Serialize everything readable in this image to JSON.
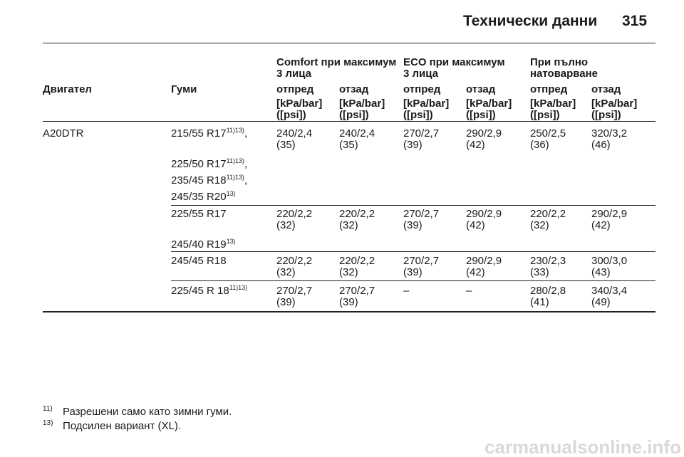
{
  "header": {
    "title": "Технически данни",
    "page": "315"
  },
  "table": {
    "engine_header": "Двигател",
    "tire_header": "Гуми",
    "groups": [
      [
        "Comfort при максимум",
        "3 лица"
      ],
      [
        "ECO при максимум",
        "3 лица"
      ],
      [
        "При пълно",
        "натоварване"
      ]
    ],
    "columns": [
      "отпред",
      "отзад",
      "отпред",
      "отзад",
      "отпред",
      "отзад"
    ],
    "units": [
      [
        "[kPa/bar]",
        "([psi])"
      ],
      [
        "[kPa/bar]",
        "([psi])"
      ],
      [
        "[kPa/bar]",
        "([psi])"
      ],
      [
        "[kPa/bar]",
        "([psi])"
      ],
      [
        "[kPa/bar]",
        "([psi])"
      ],
      [
        "[kPa/bar]",
        "([psi])"
      ]
    ],
    "engine": "A20DTR",
    "rows": [
      {
        "tires": [
          {
            "name": "215/55 R17",
            "note": "11)13)",
            "suffix": ","
          },
          {
            "name": "225/50 R17",
            "note": "11)13)",
            "suffix": ","
          },
          {
            "name": "235/45 R18",
            "note": "11)13)",
            "suffix": ","
          },
          {
            "name": "245/35 R20",
            "note": "13)"
          }
        ],
        "values": [
          [
            "240/2,4",
            "(35)"
          ],
          [
            "240/2,4",
            "(35)"
          ],
          [
            "270/2,7",
            "(39)"
          ],
          [
            "290/2,9",
            "(42)"
          ],
          [
            "250/2,5",
            "(36)"
          ],
          [
            "320/3,2",
            "(46)"
          ]
        ]
      },
      {
        "tires": [
          {
            "name": "225/55 R17"
          },
          {
            "name": "245/40 R19",
            "note": "13)"
          }
        ],
        "values": [
          [
            "220/2,2",
            "(32)"
          ],
          [
            "220/2,2",
            "(32)"
          ],
          [
            "270/2,7",
            "(39)"
          ],
          [
            "290/2,9",
            "(42)"
          ],
          [
            "220/2,2",
            "(32)"
          ],
          [
            "290/2,9",
            "(42)"
          ]
        ]
      },
      {
        "tires": [
          {
            "name": "245/45 R18"
          }
        ],
        "values": [
          [
            "220/2,2",
            "(32)"
          ],
          [
            "220/2,2",
            "(32)"
          ],
          [
            "270/2,7",
            "(39)"
          ],
          [
            "290/2,9",
            "(42)"
          ],
          [
            "230/2,3",
            "(33)"
          ],
          [
            "300/3,0",
            "(43)"
          ]
        ]
      },
      {
        "tires": [
          {
            "name": "225/45 R 18",
            "note": "11)13)"
          }
        ],
        "values": [
          [
            "270/2,7",
            "(39)"
          ],
          [
            "270/2,7",
            "(39)"
          ],
          [
            "–"
          ],
          [
            "–"
          ],
          [
            "280/2,8",
            "(41)"
          ],
          [
            "340/3,4",
            "(49)"
          ]
        ]
      }
    ]
  },
  "footnotes": [
    {
      "mark": "11)",
      "text": "Разрешени само като зимни гуми."
    },
    {
      "mark": "13)",
      "text": "Подсилен вариант (XL)."
    }
  ],
  "watermark": "carmanualsonline.info"
}
